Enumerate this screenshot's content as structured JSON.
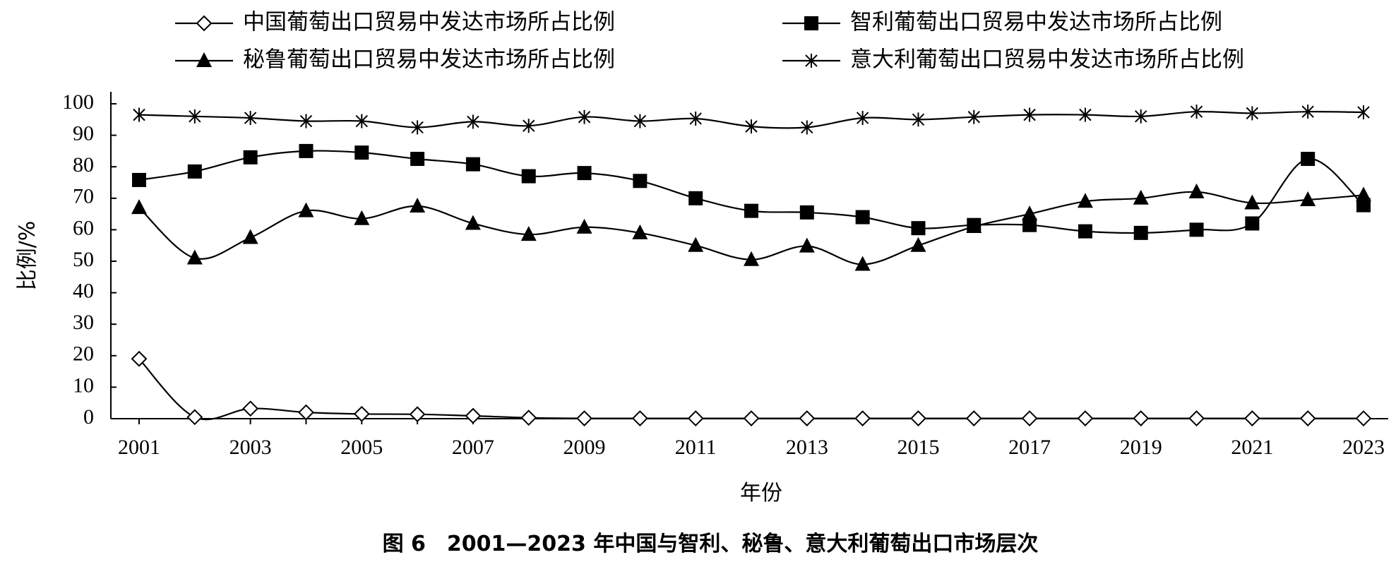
{
  "chart_data": {
    "type": "line",
    "caption": "图 6　2001—2023 年中国与智利、秘鲁、意大利葡萄出口市场层次",
    "xlabel": "年份",
    "ylabel": "比例/%",
    "x": [
      2001,
      2002,
      2003,
      2004,
      2005,
      2006,
      2007,
      2008,
      2009,
      2010,
      2011,
      2012,
      2013,
      2014,
      2015,
      2016,
      2017,
      2018,
      2019,
      2020,
      2021,
      2022,
      2023
    ],
    "x_tick_labels": [
      "2001",
      "2003",
      "2005",
      "2007",
      "2009",
      "2011",
      "2013",
      "2015",
      "2017",
      "2019",
      "2021",
      "2023"
    ],
    "ylim": [
      0,
      100
    ],
    "y_tick_labels": [
      "0",
      "10",
      "20",
      "30",
      "40",
      "50",
      "60",
      "70",
      "80",
      "90",
      "100"
    ],
    "grid": false,
    "legend_placement": "top",
    "series": [
      {
        "name": "中国葡萄出口贸易中发达市场所占比例",
        "marker": "diamond-open",
        "values": [
          19,
          0.5,
          3.2,
          2,
          1.5,
          1.4,
          0.9,
          0.3,
          0.1,
          0.1,
          0.1,
          0.1,
          0.1,
          0.1,
          0.1,
          0.1,
          0.1,
          0.1,
          0.1,
          0.1,
          0.1,
          0.1,
          0.1
        ]
      },
      {
        "name": "智利葡萄出口贸易中发达市场所占比例",
        "marker": "square",
        "values": [
          75.8,
          78.5,
          83,
          85,
          84.5,
          82.5,
          80.8,
          77,
          78,
          75.5,
          70,
          66,
          65.5,
          64,
          60.5,
          61.5,
          61.5,
          59.5,
          59,
          60,
          62,
          82.5,
          67.8
        ]
      },
      {
        "name": "秘鲁葡萄出口贸易中发达市场所占比例",
        "marker": "triangle",
        "values": [
          67,
          51,
          57.5,
          66,
          63.5,
          67.5,
          62,
          58.5,
          60.8,
          59,
          55,
          50.5,
          54.8,
          49,
          55,
          61,
          65,
          69,
          70,
          72,
          68.5,
          69.5,
          71
        ]
      },
      {
        "name": "意大利葡萄出口贸易中发达市场所占比例",
        "marker": "star",
        "values": [
          96.5,
          96,
          95.5,
          94.5,
          94.5,
          92.5,
          94.3,
          93,
          95.8,
          94.5,
          95.3,
          92.8,
          92.5,
          95.5,
          95,
          95.8,
          96.5,
          96.5,
          96,
          97.5,
          97,
          97.5,
          97.3
        ]
      }
    ]
  }
}
